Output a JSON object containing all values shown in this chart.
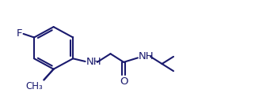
{
  "bg_color": "#ffffff",
  "line_color": "#1a1a6e",
  "text_color": "#1a1a6e",
  "line_width": 1.5,
  "font_size": 9.5,
  "xlim": [
    0,
    10
  ],
  "ylim": [
    0,
    4.5
  ]
}
